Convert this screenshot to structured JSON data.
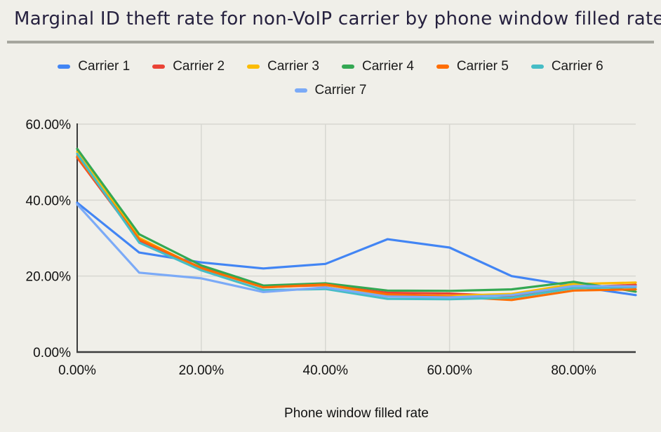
{
  "title": "Marginal ID theft rate for non-VoIP carrier by phone window filled rate",
  "colors": {
    "background": "#f0efe9",
    "divider": "#a6a69e",
    "title_text": "#26213f",
    "axis_text": "#111111",
    "gridline": "#d7d7d1",
    "axis_line": "#3c3c3c"
  },
  "chart_data": {
    "type": "line",
    "title": "Marginal ID theft rate for non-VoIP carrier by phone window filled rate",
    "xlabel": "Phone window filled rate",
    "ylabel": "",
    "grid": true,
    "legend_position": "top",
    "xlim": [
      0,
      90
    ],
    "ylim": [
      0,
      60
    ],
    "x": [
      0,
      10,
      20,
      30,
      40,
      50,
      60,
      70,
      80,
      90
    ],
    "x_tick_values": [
      0,
      20,
      40,
      60,
      80
    ],
    "x_tick_labels": [
      "0.00%",
      "20.00%",
      "40.00%",
      "60.00%",
      "80.00%"
    ],
    "y_tick_values": [
      0,
      20,
      40,
      60
    ],
    "y_tick_labels": [
      "0.00%",
      "20.00%",
      "40.00%",
      "60.00%"
    ],
    "value_unit": "percent",
    "series": [
      {
        "name": "Carrier 1",
        "color": "#4285f4",
        "values": [
          39.3,
          26.2,
          23.6,
          22.0,
          23.2,
          29.7,
          27.5,
          20.0,
          17.4,
          15.0
        ]
      },
      {
        "name": "Carrier 2",
        "color": "#ea4335",
        "values": [
          51.2,
          29.3,
          22.2,
          17.1,
          17.6,
          15.6,
          15.4,
          14.7,
          17.0,
          17.7
        ]
      },
      {
        "name": "Carrier 3",
        "color": "#fbbc04",
        "values": [
          52.7,
          30.1,
          21.9,
          17.3,
          17.7,
          15.0,
          14.8,
          15.3,
          17.9,
          18.3
        ]
      },
      {
        "name": "Carrier 4",
        "color": "#34a853",
        "values": [
          53.5,
          31.0,
          22.8,
          17.5,
          18.1,
          16.2,
          16.1,
          16.5,
          18.5,
          15.9
        ]
      },
      {
        "name": "Carrier 5",
        "color": "#ff6d01",
        "values": [
          51.5,
          29.7,
          22.1,
          17.0,
          17.8,
          15.2,
          14.6,
          13.7,
          16.2,
          16.5
        ]
      },
      {
        "name": "Carrier 6",
        "color": "#46bdc6",
        "values": [
          52.2,
          28.8,
          21.5,
          16.3,
          16.6,
          14.0,
          13.9,
          14.3,
          16.8,
          17.1
        ]
      },
      {
        "name": "Carrier 7",
        "color": "#7baaf7",
        "values": [
          38.9,
          20.9,
          19.4,
          15.8,
          17.0,
          14.6,
          14.4,
          15.0,
          17.4,
          17.3
        ]
      }
    ]
  }
}
